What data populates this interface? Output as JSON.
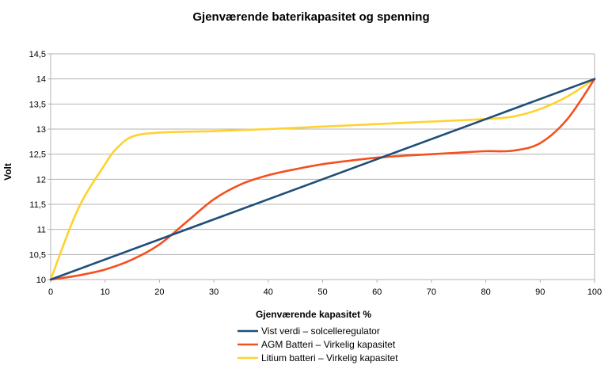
{
  "chart_data": {
    "type": "line",
    "title": "Gjenværende baterikapasitet og spenning",
    "xlabel": "Gjenværende kapasitet %",
    "ylabel": "Volt",
    "xlim": [
      0,
      100
    ],
    "ylim": [
      10,
      14.5
    ],
    "x_ticks": [
      "0",
      "10",
      "20",
      "30",
      "40",
      "50",
      "60",
      "70",
      "80",
      "90",
      "100"
    ],
    "y_ticks": [
      "10",
      "10,5",
      "11",
      "11,5",
      "12",
      "12,5",
      "13",
      "13,5",
      "14",
      "14,5"
    ],
    "grid": true,
    "legend_position": "bottom",
    "series": [
      {
        "name": "Vist verdi – solcelleregulator",
        "color": "#1f4e79",
        "x": [
          0,
          100
        ],
        "y": [
          10,
          14
        ]
      },
      {
        "name": "AGM Batteri – Virkelig kapasitet",
        "color": "#f4511e",
        "x": [
          0,
          5,
          10,
          15,
          20,
          25,
          30,
          35,
          40,
          45,
          50,
          55,
          60,
          65,
          70,
          75,
          80,
          85,
          90,
          95,
          100
        ],
        "y": [
          10,
          10.08,
          10.2,
          10.4,
          10.7,
          11.15,
          11.6,
          11.9,
          12.08,
          12.2,
          12.3,
          12.37,
          12.43,
          12.47,
          12.5,
          12.53,
          12.56,
          12.57,
          12.72,
          13.2,
          14
        ]
      },
      {
        "name": "Litium batteri – Virkelig kapasitet",
        "color": "#ffd22e",
        "x": [
          0,
          5,
          10,
          12,
          15,
          20,
          30,
          40,
          50,
          60,
          70,
          80,
          85,
          90,
          95,
          100
        ],
        "y": [
          10,
          11.4,
          12.3,
          12.6,
          12.85,
          12.93,
          12.96,
          13.0,
          13.05,
          13.1,
          13.15,
          13.2,
          13.25,
          13.4,
          13.65,
          14
        ]
      }
    ]
  }
}
